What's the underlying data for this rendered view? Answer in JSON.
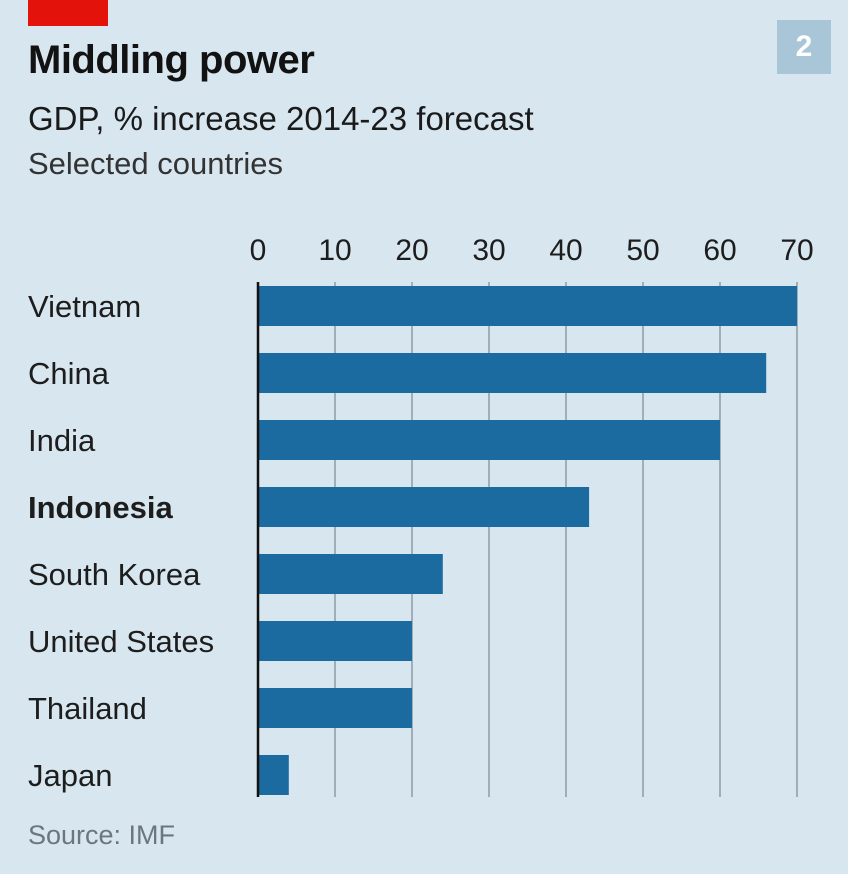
{
  "header": {
    "title": "Middling power",
    "subtitle": "GDP, % increase 2014-23 forecast",
    "subsubtitle": "Selected countries",
    "badge": "2"
  },
  "footer": {
    "source": "Source: IMF"
  },
  "colors": {
    "background": "#d7e6ef",
    "bar": "#1b6ba0",
    "gridline": "#8f9ca5",
    "accent_red": "#e3120b",
    "badge": "#a9c6d8"
  },
  "chart_data": {
    "type": "bar",
    "orientation": "horizontal",
    "title": "Middling power",
    "subtitle": "GDP, % increase 2014-23 forecast",
    "categories": [
      "Vietnam",
      "China",
      "India",
      "Indonesia",
      "South Korea",
      "United States",
      "Thailand",
      "Japan"
    ],
    "values": [
      70,
      66,
      60,
      43,
      24,
      20,
      20,
      4
    ],
    "highlighted_category": "Indonesia",
    "xlim": [
      0,
      70
    ],
    "ticks": [
      "0",
      "10",
      "20",
      "30",
      "40",
      "50",
      "60",
      "70"
    ],
    "tick_values": [
      0,
      10,
      20,
      30,
      40,
      50,
      60,
      70
    ],
    "xlabel": "",
    "ylabel": "",
    "grid": true
  }
}
